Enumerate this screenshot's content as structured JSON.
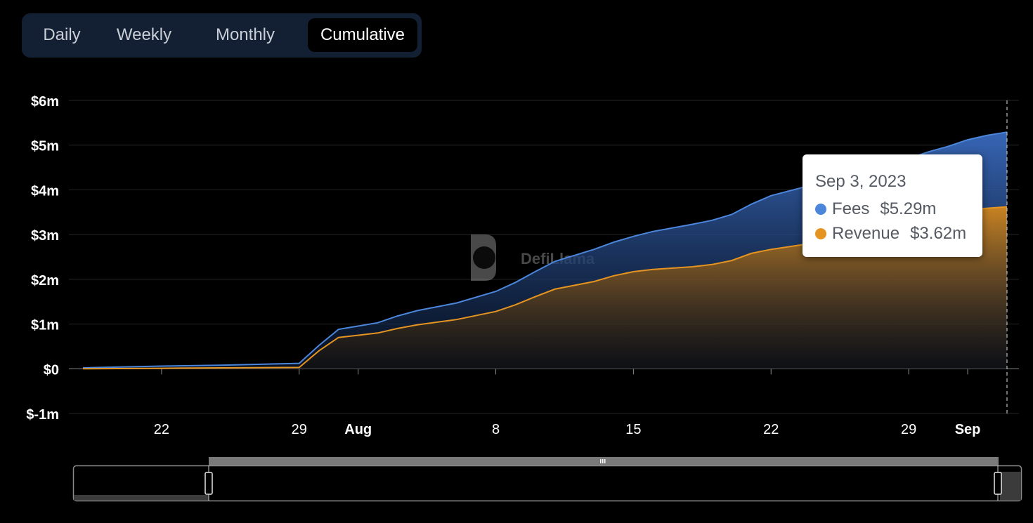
{
  "tabs": [
    {
      "label": "Daily",
      "active": false
    },
    {
      "label": "Weekly",
      "active": false
    },
    {
      "label": "Monthly",
      "active": false
    },
    {
      "label": "Cumulative",
      "active": true
    }
  ],
  "watermark": "DefiLlama",
  "tooltip": {
    "date": "Sep 3, 2023",
    "fees_label": "Fees",
    "fees_value": "$5.29m",
    "revenue_label": "Revenue",
    "revenue_value": "$3.62m"
  },
  "colors": {
    "fees": "#4b86db",
    "revenue": "#e59421",
    "background": "#000000",
    "tab_bar": "#132034"
  },
  "chart_data": {
    "type": "area",
    "x_unit": "date",
    "y_unit": "USD millions",
    "ylim": [
      -1,
      6
    ],
    "yticks": [
      -1,
      0,
      1,
      2,
      3,
      4,
      5,
      6
    ],
    "ytick_labels": [
      "$-1m",
      "$0",
      "$1m",
      "$2m",
      "$3m",
      "$4m",
      "$5m",
      "$6m"
    ],
    "xlim": [
      "2023-07-18",
      "2023-09-03"
    ],
    "xticks": [
      {
        "date": "2023-07-22",
        "label": "22",
        "bold": false
      },
      {
        "date": "2023-07-29",
        "label": "29",
        "bold": false
      },
      {
        "date": "2023-08-01",
        "label": "Aug",
        "bold": true
      },
      {
        "date": "2023-08-08",
        "label": "8",
        "bold": false
      },
      {
        "date": "2023-08-15",
        "label": "15",
        "bold": false
      },
      {
        "date": "2023-08-22",
        "label": "22",
        "bold": false
      },
      {
        "date": "2023-08-29",
        "label": "29",
        "bold": false
      },
      {
        "date": "2023-09-01",
        "label": "Sep",
        "bold": true
      }
    ],
    "grid": true,
    "legend": "none",
    "x": [
      "2023-07-18",
      "2023-07-22",
      "2023-07-25",
      "2023-07-29",
      "2023-07-30",
      "2023-07-31",
      "2023-08-02",
      "2023-08-03",
      "2023-08-04",
      "2023-08-06",
      "2023-08-08",
      "2023-08-09",
      "2023-08-10",
      "2023-08-11",
      "2023-08-13",
      "2023-08-14",
      "2023-08-15",
      "2023-08-16",
      "2023-08-17",
      "2023-08-18",
      "2023-08-19",
      "2023-08-20",
      "2023-08-21",
      "2023-08-22",
      "2023-08-24",
      "2023-08-26",
      "2023-08-28",
      "2023-08-30",
      "2023-08-31",
      "2023-09-01",
      "2023-09-02",
      "2023-09-03"
    ],
    "series": [
      {
        "name": "Fees",
        "values": [
          0.02,
          0.06,
          0.08,
          0.12,
          0.52,
          0.88,
          1.03,
          1.18,
          1.3,
          1.47,
          1.73,
          1.93,
          2.17,
          2.4,
          2.67,
          2.83,
          2.96,
          3.07,
          3.15,
          3.23,
          3.32,
          3.45,
          3.68,
          3.87,
          4.1,
          4.3,
          4.55,
          4.85,
          4.97,
          5.12,
          5.22,
          5.29
        ]
      },
      {
        "name": "Revenue",
        "values": [
          0.0,
          0.01,
          0.02,
          0.03,
          0.4,
          0.7,
          0.8,
          0.9,
          0.98,
          1.1,
          1.28,
          1.43,
          1.61,
          1.78,
          1.95,
          2.08,
          2.17,
          2.22,
          2.25,
          2.28,
          2.33,
          2.42,
          2.58,
          2.67,
          2.8,
          2.95,
          3.15,
          3.38,
          3.45,
          3.55,
          3.59,
          3.62
        ]
      }
    ]
  }
}
